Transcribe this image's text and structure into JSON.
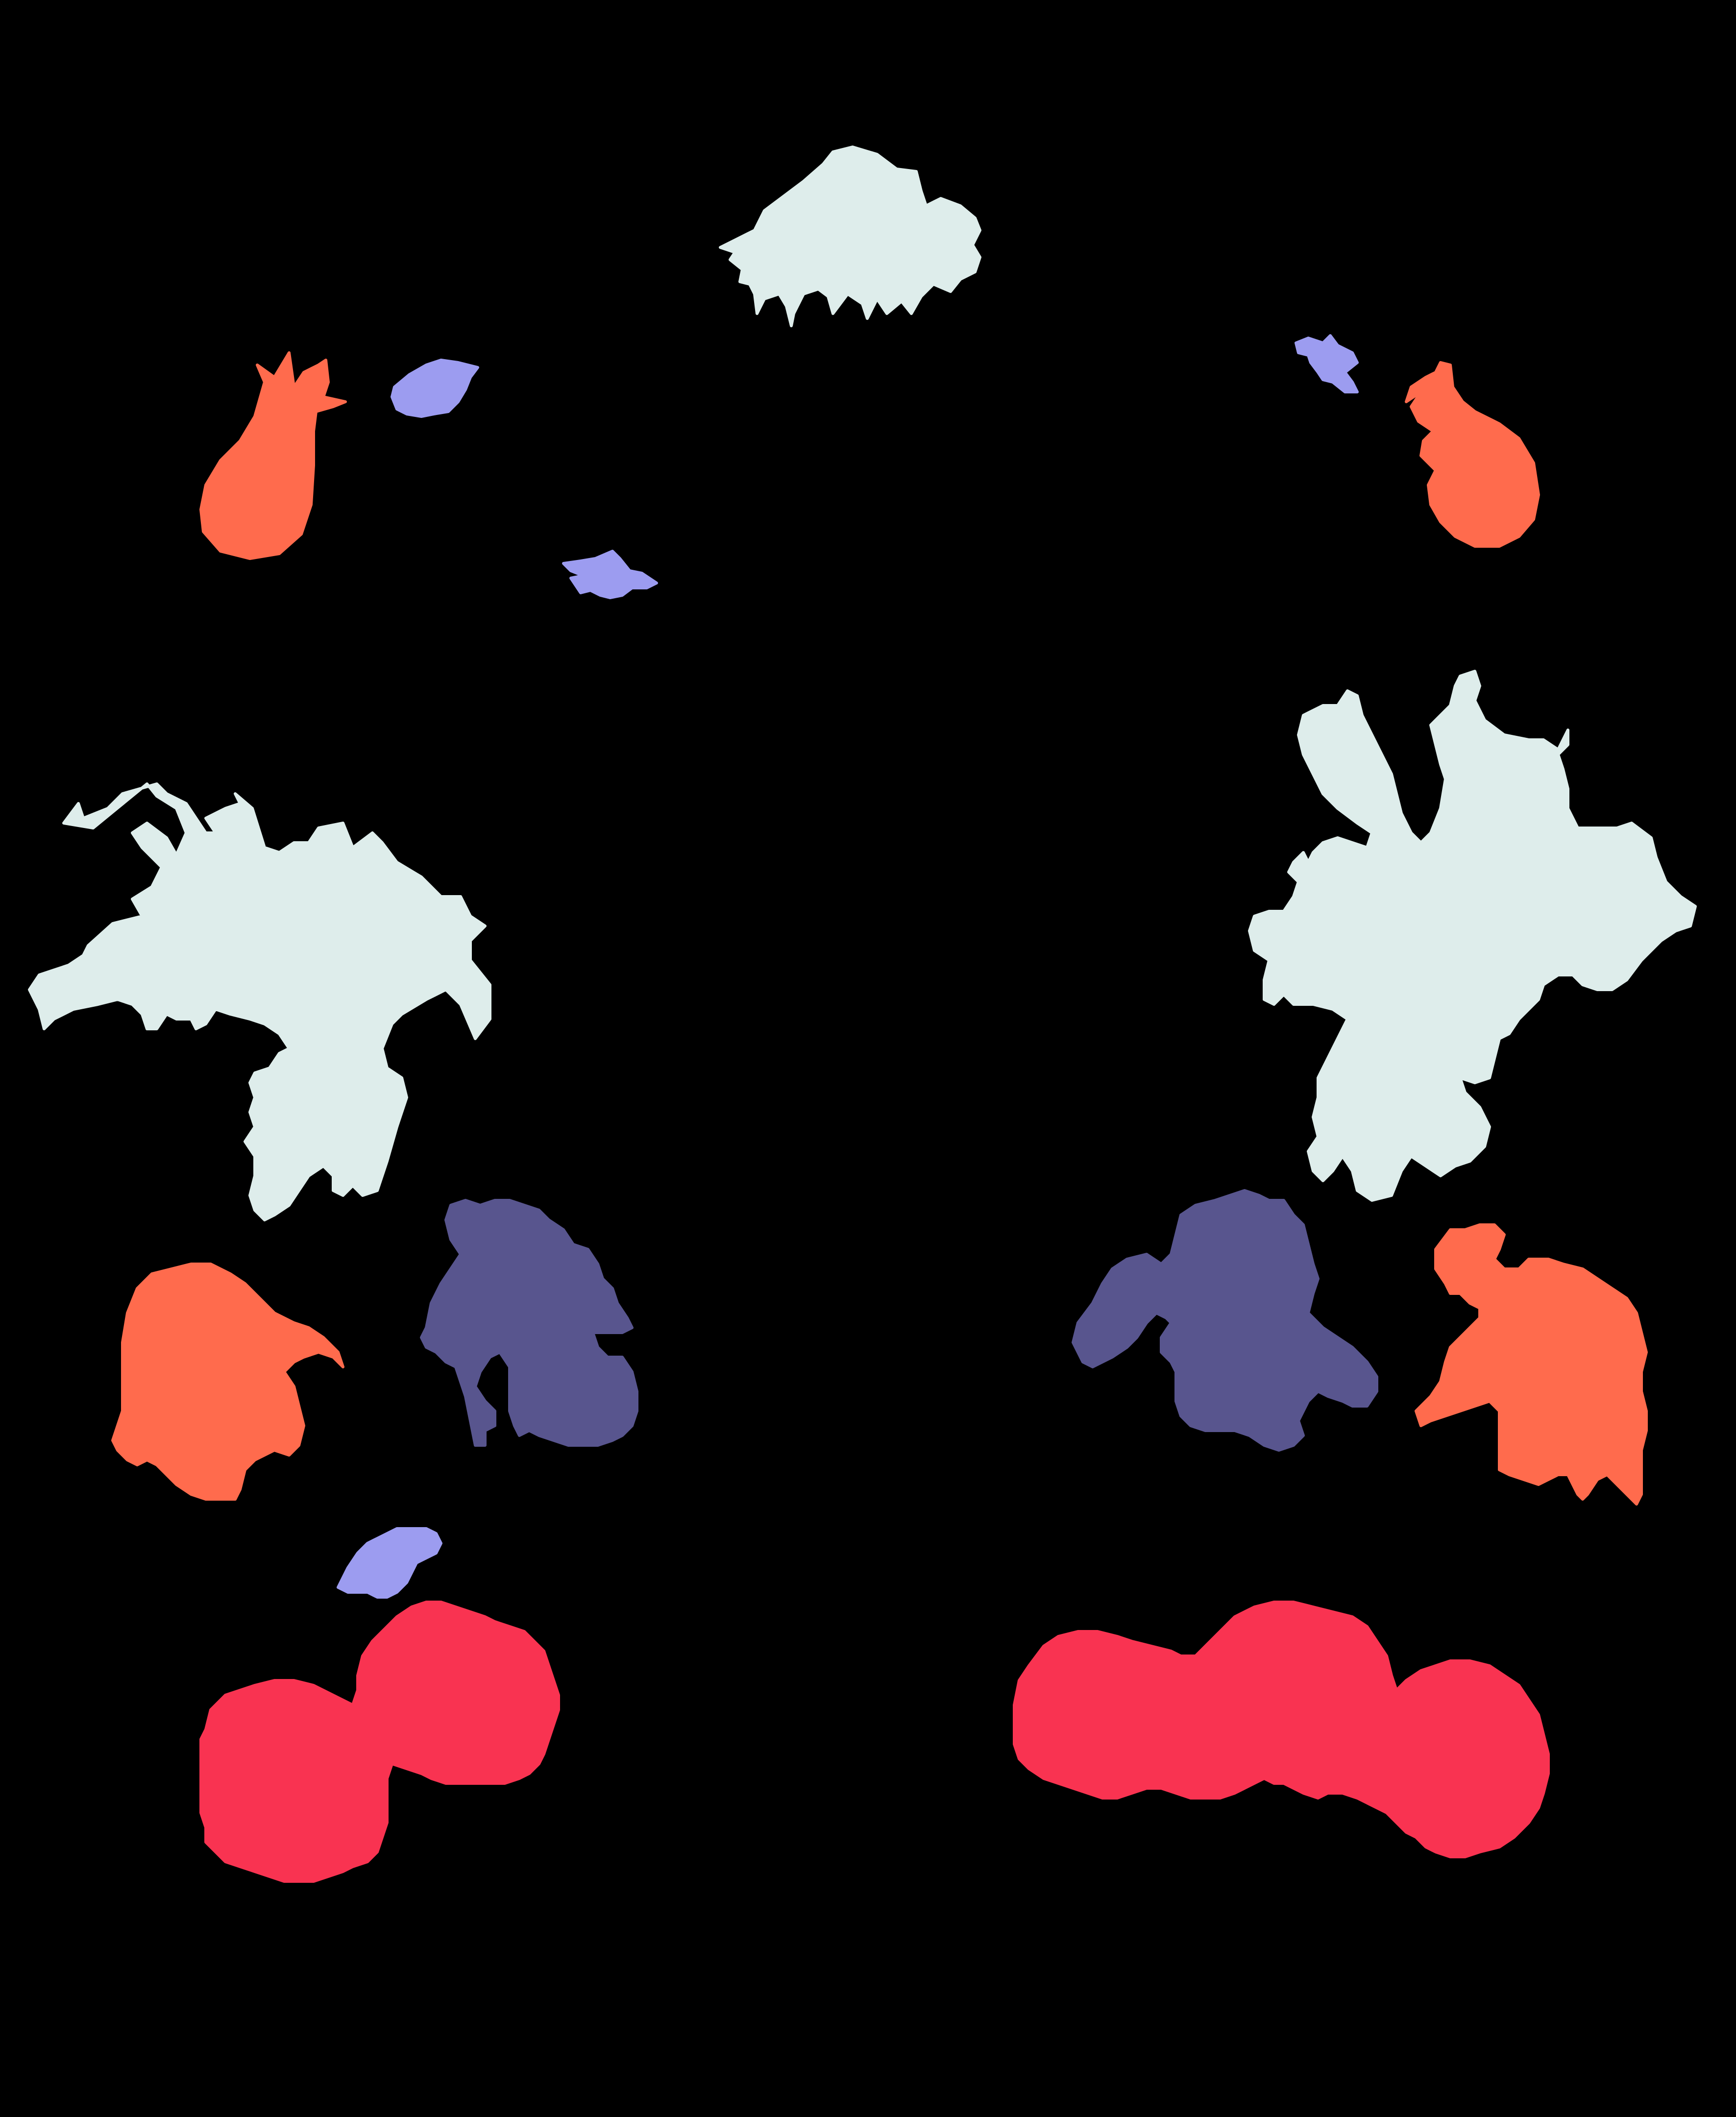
{
  "background": "#000000",
  "colors": {
    "mint": "#deedeb",
    "orange": "#ff6b4d",
    "lavender": "#9c9cf0",
    "indigo": "#58558e",
    "crimson": "#f93351"
  },
  "items": [
    {
      "name": "chrysanthemum-top-center",
      "kind": "chrysanthemum",
      "color": "mint"
    },
    {
      "name": "tulip-bud-upper-left",
      "kind": "tulip-bud",
      "color": "orange"
    },
    {
      "name": "tulip-bud-upper-right",
      "kind": "tulip-bud",
      "color": "orange"
    },
    {
      "name": "small-petal-upper-left",
      "kind": "petal",
      "color": "lavender"
    },
    {
      "name": "small-petal-mid-left",
      "kind": "petal",
      "color": "lavender"
    },
    {
      "name": "small-petal-upper-right",
      "kind": "petal",
      "color": "lavender"
    },
    {
      "name": "lily-cluster-left",
      "kind": "lily-cluster",
      "color": "mint"
    },
    {
      "name": "lily-cluster-right",
      "kind": "lily-cluster",
      "color": "mint"
    },
    {
      "name": "iris-left",
      "kind": "iris",
      "color": "indigo"
    },
    {
      "name": "iris-right",
      "kind": "iris",
      "color": "indigo"
    },
    {
      "name": "bell-flower-left",
      "kind": "bell-flower",
      "color": "orange"
    },
    {
      "name": "bell-flower-right",
      "kind": "bell-flower",
      "color": "orange"
    },
    {
      "name": "small-petal-lower-left",
      "kind": "petal",
      "color": "lavender"
    },
    {
      "name": "carnation-cluster-left",
      "kind": "carnation-cluster",
      "color": "crimson"
    },
    {
      "name": "carnation-cluster-right",
      "kind": "carnation-cluster",
      "color": "crimson"
    }
  ]
}
